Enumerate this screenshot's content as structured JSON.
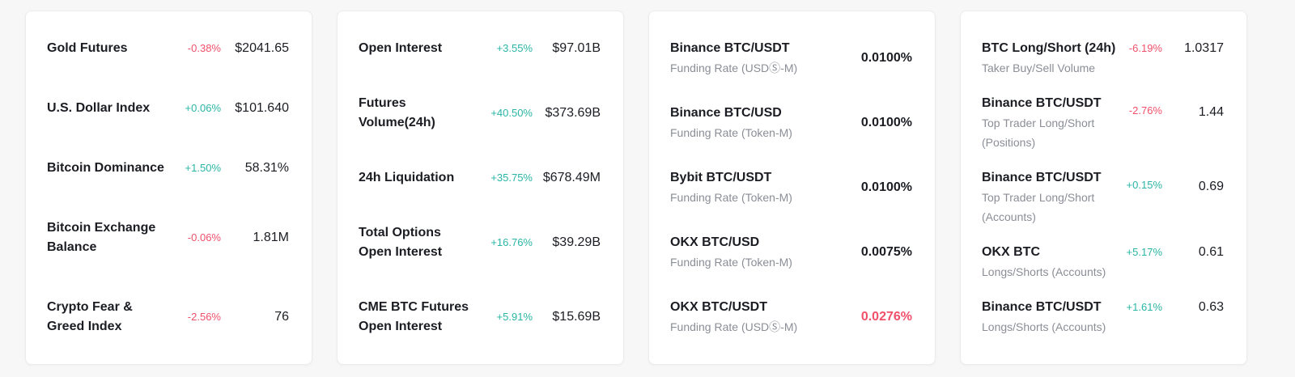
{
  "colors": {
    "positive": "#2ab5a5",
    "negative": "#f0506a",
    "text": "#1b1d23",
    "muted": "#8b8e97",
    "background": "#f7f7f8",
    "card": "#ffffff"
  },
  "market_card": {
    "rows": [
      {
        "label": "Gold Futures",
        "change": "-0.38%",
        "direction": "down",
        "value": "$2041.65"
      },
      {
        "label": "U.S. Dollar Index",
        "change": "+0.06%",
        "direction": "up",
        "value": "$101.640"
      },
      {
        "label": "Bitcoin Dominance",
        "change": "+1.50%",
        "direction": "up",
        "value": "58.31%"
      },
      {
        "label": "Bitcoin Exchange Balance",
        "change": "-0.06%",
        "direction": "down",
        "value": "1.81M"
      },
      {
        "label": "Crypto Fear & Greed Index",
        "change": "-2.56%",
        "direction": "down",
        "value": "76"
      }
    ]
  },
  "futures_card": {
    "rows": [
      {
        "label": "Open Interest",
        "change": "+3.55%",
        "direction": "up",
        "value": "$97.01B"
      },
      {
        "label": "Futures Volume(24h)",
        "change": "+40.50%",
        "direction": "up",
        "value": "$373.69B"
      },
      {
        "label": "24h Liquidation",
        "change": "+35.75%",
        "direction": "up",
        "value": "$678.49M"
      },
      {
        "label": "Total Options Open Interest",
        "change": "+16.76%",
        "direction": "up",
        "value": "$39.29B"
      },
      {
        "label": "CME BTC Futures Open Interest",
        "change": "+5.91%",
        "direction": "up",
        "value": "$15.69B"
      }
    ]
  },
  "funding_card": {
    "rows": [
      {
        "title": "Binance BTC/USDT",
        "subtitle": "Funding Rate (USDⓈ-M)",
        "value": "0.0100%",
        "value_state": "normal"
      },
      {
        "title": "Binance BTC/USD",
        "subtitle": "Funding Rate (Token-M)",
        "value": "0.0100%",
        "value_state": "normal"
      },
      {
        "title": "Bybit BTC/USDT",
        "subtitle": "Funding Rate (Token-M)",
        "value": "0.0100%",
        "value_state": "normal"
      },
      {
        "title": "OKX BTC/USD",
        "subtitle": "Funding Rate (Token-M)",
        "value": "0.0075%",
        "value_state": "normal"
      },
      {
        "title": "OKX BTC/USDT",
        "subtitle": "Funding Rate (USDⓈ-M)",
        "value": "0.0276%",
        "value_state": "negative"
      }
    ]
  },
  "long_short_card": {
    "rows": [
      {
        "title": "BTC Long/Short (24h)",
        "subtitle": "Taker Buy/Sell Volume",
        "change": "-6.19%",
        "direction": "down",
        "value": "1.0317"
      },
      {
        "title": "Binance BTC/USDT",
        "subtitle": "Top Trader Long/Short (Positions)",
        "change": "-2.76%",
        "direction": "down",
        "value": "1.44"
      },
      {
        "title": "Binance BTC/USDT",
        "subtitle": "Top Trader Long/Short (Accounts)",
        "change": "+0.15%",
        "direction": "up",
        "value": "0.69"
      },
      {
        "title": "OKX BTC",
        "subtitle": "Longs/Shorts (Accounts)",
        "change": "+5.17%",
        "direction": "up",
        "value": "0.61"
      },
      {
        "title": "Binance BTC/USDT",
        "subtitle": "Longs/Shorts (Accounts)",
        "change": "+1.61%",
        "direction": "up",
        "value": "0.63"
      }
    ]
  }
}
